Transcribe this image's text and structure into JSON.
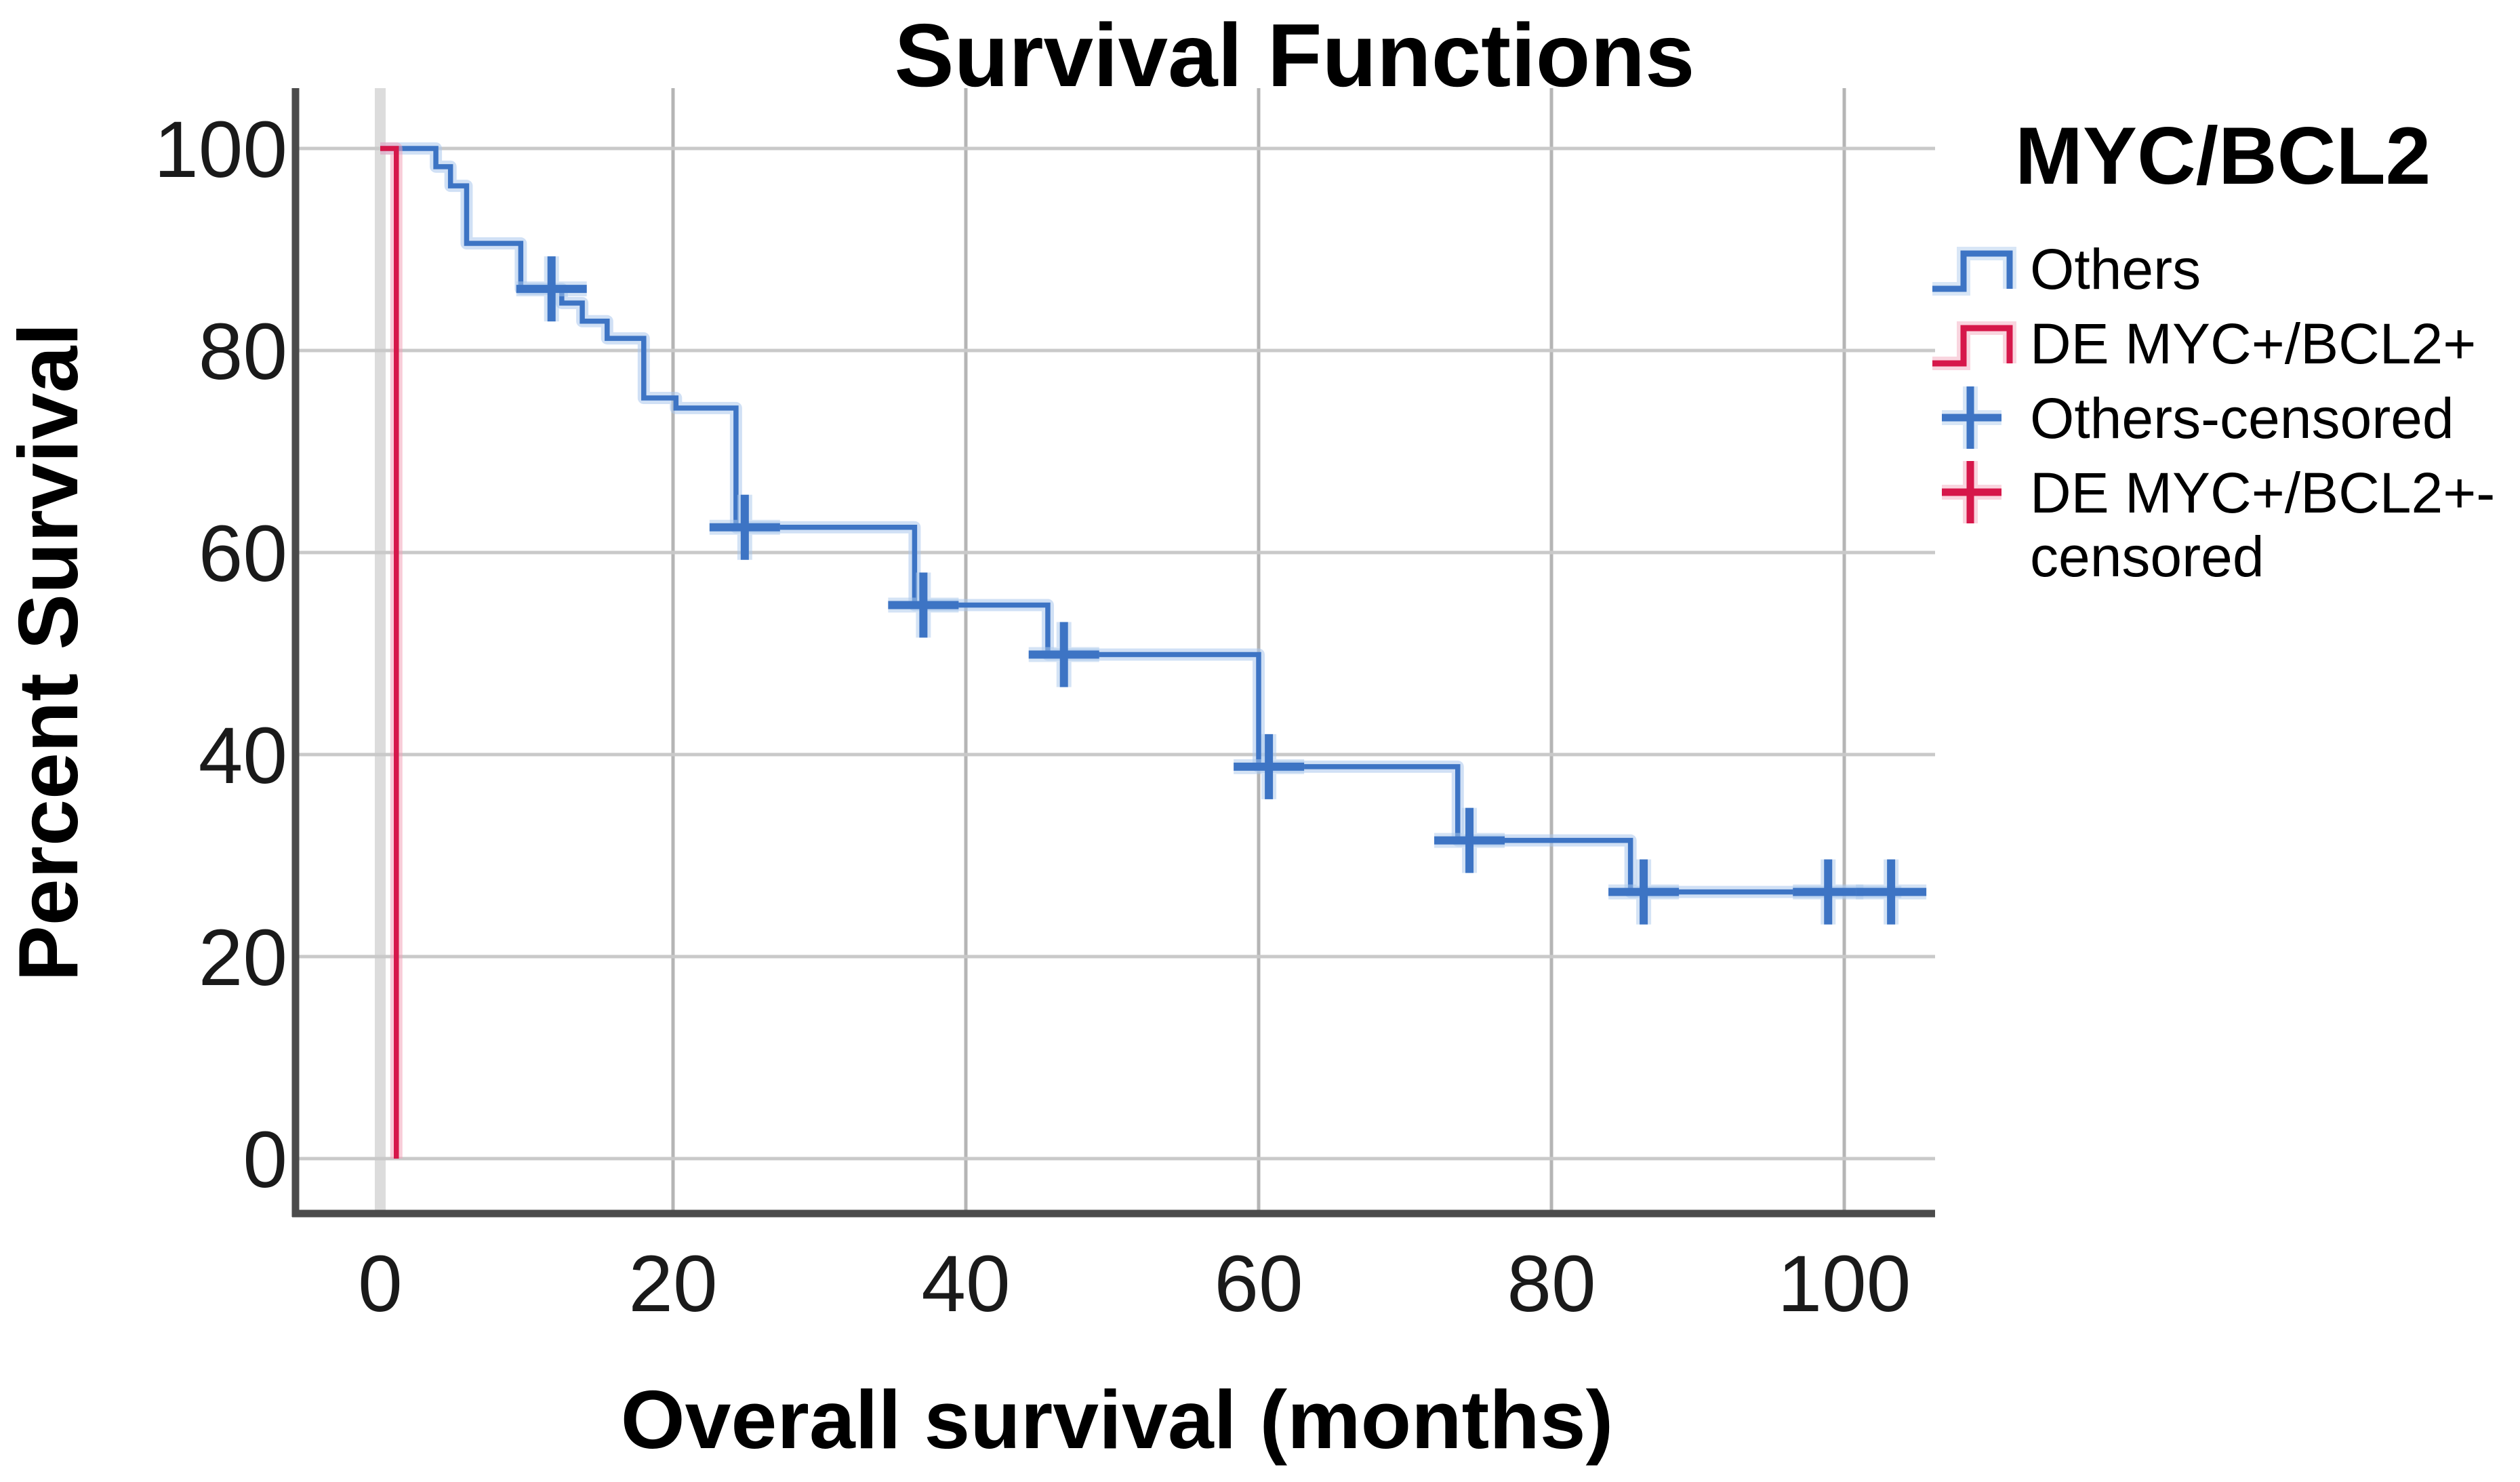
{
  "title": "Survival Functions",
  "axes": {
    "x_title": "Overall survival (months)",
    "y_title": "Percent Survival"
  },
  "legend": {
    "title": "MYC/BCL2",
    "entries": [
      {
        "label": "Others",
        "type": "step-line",
        "color": "#3d74c4"
      },
      {
        "label": "DE MYC+/BCL2+",
        "type": "step-line",
        "color": "#d6174a"
      },
      {
        "label": "Others-censored",
        "type": "plus",
        "color": "#3d74c4"
      },
      {
        "label": "DE MYC+/BCL2+-censored",
        "label_lines": [
          "DE MYC+/BCL2+-",
          "censored"
        ],
        "type": "plus",
        "color": "#d6174a"
      }
    ]
  },
  "colors": {
    "blue_core": "#3d74c4",
    "blue_halo": "#a9c7ec",
    "red_core": "#d6174a",
    "red_halo": "#f2a2b8",
    "grid_horizontal": "#c9c9c9",
    "grid_vertical": "#b5b5b5",
    "grid_zero_band": "#dcdcdc",
    "axis_frame": "#4b4b4b",
    "tick_text": "#1a1a1a"
  },
  "chart_data": {
    "type": "line",
    "subtype": "kaplan-meier-step",
    "title": "Survival Functions",
    "xlabel": "Overall survival (months)",
    "ylabel": "Percent Survival",
    "x_ticks": [
      0,
      20,
      40,
      60,
      80,
      100
    ],
    "y_ticks": [
      0,
      20,
      40,
      60,
      80,
      100
    ],
    "xlim": [
      -5.8,
      106.2
    ],
    "ylim": [
      -5.4,
      106
    ],
    "grid": true,
    "legend_position": "right",
    "series": [
      {
        "name": "Others",
        "color": "#3d74c4",
        "halo": "#a9c7ec",
        "points": [
          [
            0,
            100
          ],
          [
            3.8,
            100
          ],
          [
            3.8,
            98.2
          ],
          [
            4.8,
            98.2
          ],
          [
            4.8,
            96.3
          ],
          [
            5.9,
            96.3
          ],
          [
            5.9,
            90.6
          ],
          [
            9.6,
            90.6
          ],
          [
            9.6,
            86.1
          ],
          [
            12.4,
            86.1
          ],
          [
            12.4,
            84.7
          ],
          [
            13.8,
            84.7
          ],
          [
            13.8,
            82.9
          ],
          [
            15.5,
            82.9
          ],
          [
            15.5,
            81.2
          ],
          [
            18,
            81.2
          ],
          [
            18,
            75.3
          ],
          [
            20.2,
            75.3
          ],
          [
            20.2,
            74.3
          ],
          [
            24.3,
            74.3
          ],
          [
            24.3,
            62.5
          ],
          [
            36.5,
            62.5
          ],
          [
            36.5,
            54.8
          ],
          [
            45.6,
            54.8
          ],
          [
            45.6,
            49.9
          ],
          [
            60,
            49.9
          ],
          [
            60,
            38.8
          ],
          [
            73.6,
            38.8
          ],
          [
            73.6,
            31.5
          ],
          [
            85.4,
            31.5
          ],
          [
            85.4,
            26.4
          ],
          [
            103.9,
            26.4
          ]
        ],
        "censored": [
          [
            11.7,
            86.1
          ],
          [
            24.9,
            62.5
          ],
          [
            37.1,
            54.8
          ],
          [
            46.7,
            49.9
          ],
          [
            60.7,
            38.8
          ],
          [
            74.4,
            31.5
          ],
          [
            86.3,
            26.4
          ],
          [
            98.9,
            26.4
          ],
          [
            103.2,
            26.4
          ]
        ]
      },
      {
        "name": "DE MYC+/BCL2+",
        "color": "#d6174a",
        "halo": "#f2a2b8",
        "points": [
          [
            0,
            100
          ],
          [
            1.1,
            100
          ],
          [
            1.1,
            0
          ]
        ],
        "censored": []
      }
    ]
  }
}
